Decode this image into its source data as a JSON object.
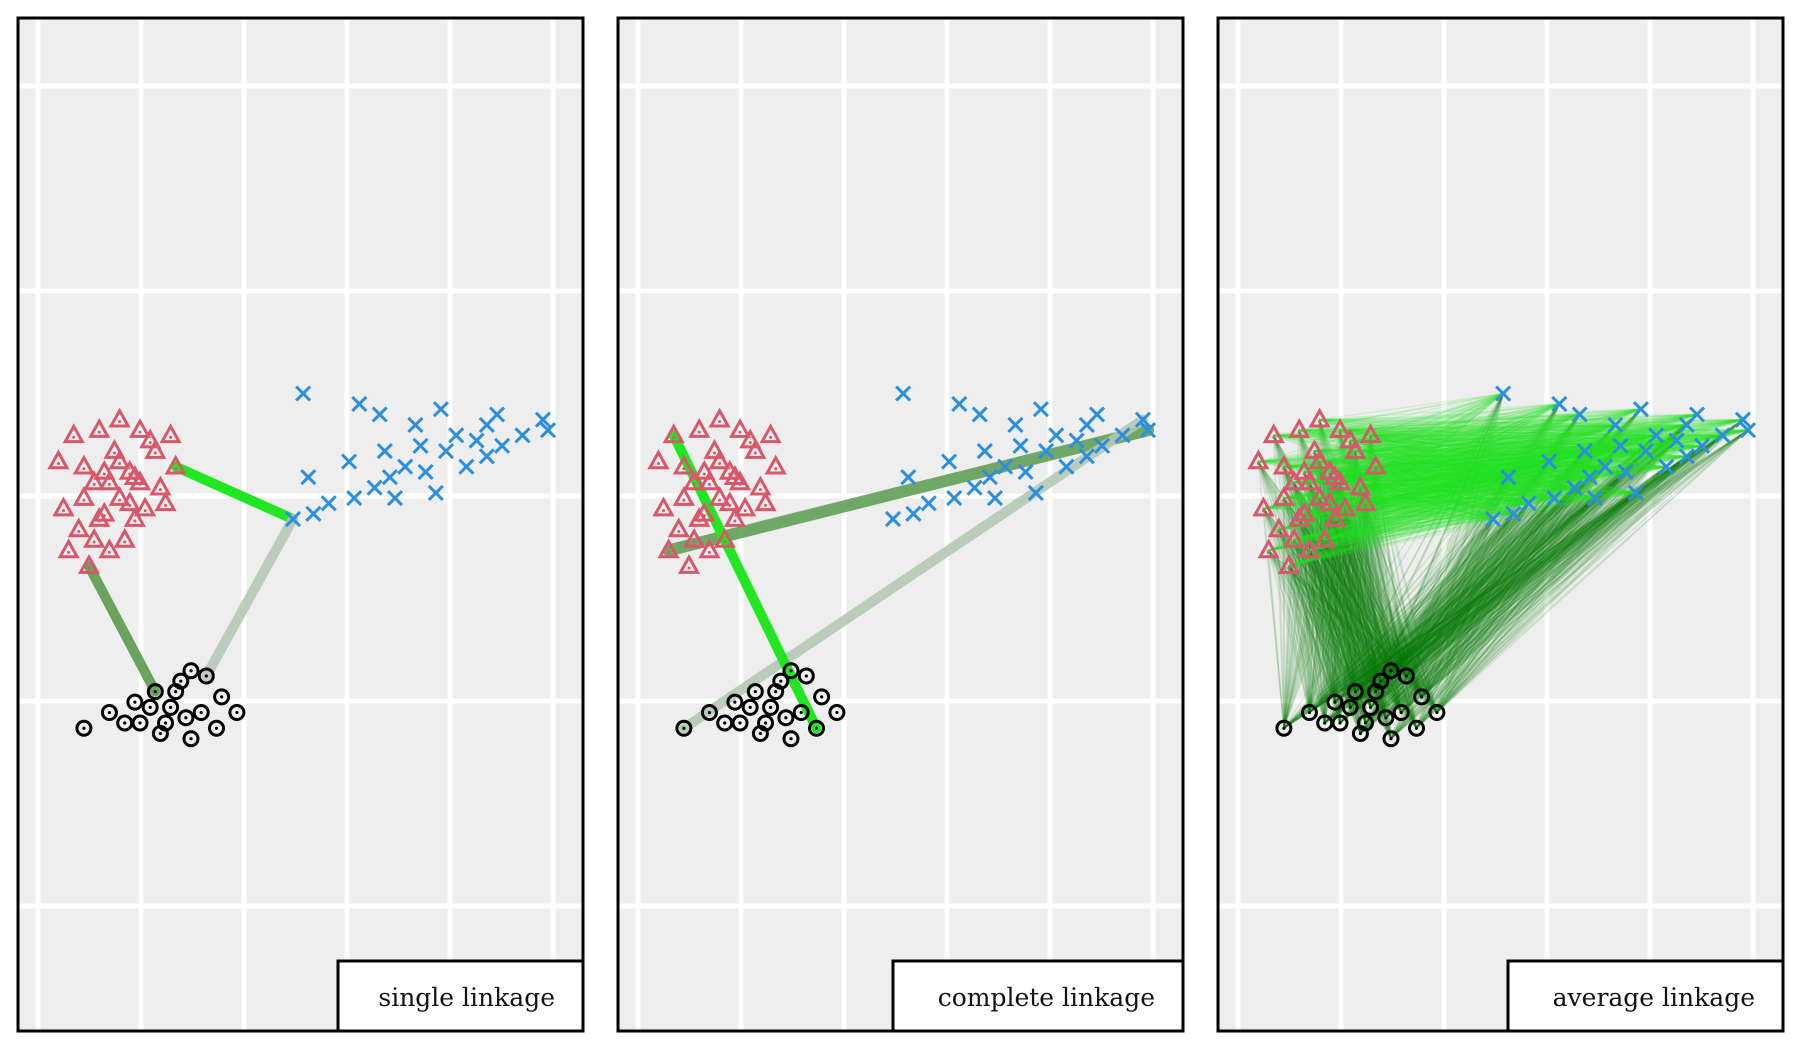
{
  "colors": {
    "background": "#ffffff",
    "panel_background": "#eeeeee",
    "grid": "#ffffff",
    "border": "#000000",
    "cluster_triangle": "#d9576a",
    "cluster_x": "#2b8fde",
    "cluster_circle": "#000000",
    "link_bright": "#22e622",
    "link_mid": "#5a9a4e",
    "link_faint": "#b4c8b4",
    "link_dark": "#0a7a0a"
  },
  "chart_data": [
    {
      "type": "scatter",
      "label": "single linkage",
      "grid": true,
      "xlim": [
        0,
        10
      ],
      "ylim": [
        0,
        10
      ],
      "series": [
        {
          "marker": "triangle",
          "color": "#d9576a",
          "points": [
            [
              0.4,
              6.3
            ],
            [
              0.9,
              6.2
            ],
            [
              1.4,
              5.9
            ],
            [
              1.9,
              6.0
            ],
            [
              1.6,
              5.6
            ],
            [
              1.3,
              5.3
            ],
            [
              0.8,
              5.0
            ],
            [
              1.1,
              4.8
            ],
            [
              0.6,
              4.6
            ],
            [
              1.0,
              4.3
            ],
            [
              1.7,
              4.8
            ],
            [
              2.1,
              5.4
            ],
            [
              2.4,
              5.8
            ],
            [
              2.7,
              6.2
            ],
            [
              2.3,
              6.5
            ],
            [
              2.0,
              6.9
            ],
            [
              1.6,
              7.1
            ],
            [
              1.2,
              6.9
            ],
            [
              0.7,
              6.8
            ],
            [
              1.5,
              6.5
            ],
            [
              1.8,
              6.1
            ],
            [
              2.5,
              5.5
            ],
            [
              1.1,
              5.9
            ],
            [
              1.9,
              5.2
            ],
            [
              2.2,
              6.7
            ],
            [
              1.4,
              4.6
            ],
            [
              0.9,
              5.6
            ],
            [
              1.6,
              6.3
            ],
            [
              2.0,
              5.9
            ],
            [
              0.5,
              5.4
            ],
            [
              2.6,
              6.8
            ],
            [
              1.3,
              6.1
            ],
            [
              1.8,
              5.5
            ],
            [
              1.2,
              5.2
            ]
          ]
        },
        {
          "marker": "x",
          "color": "#2b8fde",
          "points": [
            [
              5.2,
              7.6
            ],
            [
              6.3,
              7.4
            ],
            [
              6.7,
              7.2
            ],
            [
              7.4,
              7.0
            ],
            [
              7.9,
              7.3
            ],
            [
              8.2,
              6.8
            ],
            [
              8.8,
              6.4
            ],
            [
              9.1,
              6.6
            ],
            [
              9.5,
              6.8
            ],
            [
              9.9,
              7.1
            ],
            [
              10.0,
              6.9
            ],
            [
              9.0,
              7.2
            ],
            [
              8.6,
              6.7
            ],
            [
              8.0,
              6.5
            ],
            [
              7.5,
              6.6
            ],
            [
              7.2,
              6.2
            ],
            [
              6.9,
              6.0
            ],
            [
              6.6,
              5.8
            ],
            [
              6.2,
              5.6
            ],
            [
              5.7,
              5.5
            ],
            [
              5.4,
              5.3
            ],
            [
              5.0,
              5.2
            ],
            [
              5.3,
              6.0
            ],
            [
              6.1,
              6.3
            ],
            [
              6.8,
              6.5
            ],
            [
              7.6,
              6.1
            ],
            [
              8.4,
              6.2
            ],
            [
              7.0,
              5.6
            ],
            [
              7.8,
              5.7
            ],
            [
              8.8,
              7.0
            ]
          ]
        },
        {
          "marker": "circle",
          "color": "#000000",
          "points": [
            [
              0.9,
              1.2
            ],
            [
              1.4,
              1.5
            ],
            [
              1.9,
              1.7
            ],
            [
              2.3,
              1.9
            ],
            [
              2.8,
              2.1
            ],
            [
              3.3,
              2.2
            ],
            [
              3.6,
              1.8
            ],
            [
              3.9,
              1.5
            ],
            [
              3.5,
              1.2
            ],
            [
              3.0,
              1.0
            ],
            [
              2.4,
              1.1
            ],
            [
              2.0,
              1.3
            ],
            [
              2.6,
              1.6
            ],
            [
              2.9,
              1.4
            ],
            [
              2.2,
              1.6
            ],
            [
              3.2,
              1.5
            ],
            [
              1.7,
              1.3
            ],
            [
              2.7,
              1.9
            ],
            [
              3.0,
              2.3
            ],
            [
              2.5,
              1.3
            ]
          ]
        }
      ]
    },
    {
      "type": "scatter",
      "label": "complete linkage",
      "grid": true,
      "xlim": [
        0,
        10
      ],
      "ylim": [
        0,
        10
      ],
      "series": [
        {
          "marker": "triangle",
          "color": "#d9576a",
          "points": [
            [
              0.4,
              6.3
            ],
            [
              0.9,
              6.2
            ],
            [
              1.4,
              5.9
            ],
            [
              1.9,
              6.0
            ],
            [
              1.6,
              5.6
            ],
            [
              1.3,
              5.3
            ],
            [
              0.8,
              5.0
            ],
            [
              1.1,
              4.8
            ],
            [
              0.6,
              4.6
            ],
            [
              1.0,
              4.3
            ],
            [
              1.7,
              4.8
            ],
            [
              2.1,
              5.4
            ],
            [
              2.4,
              5.8
            ],
            [
              2.7,
              6.2
            ],
            [
              2.3,
              6.5
            ],
            [
              2.0,
              6.9
            ],
            [
              1.6,
              7.1
            ],
            [
              1.2,
              6.9
            ],
            [
              0.7,
              6.8
            ],
            [
              1.5,
              6.5
            ],
            [
              1.8,
              6.1
            ],
            [
              2.5,
              5.5
            ],
            [
              1.1,
              5.9
            ],
            [
              1.9,
              5.2
            ],
            [
              2.2,
              6.7
            ],
            [
              1.4,
              4.6
            ],
            [
              0.9,
              5.6
            ],
            [
              1.6,
              6.3
            ],
            [
              2.0,
              5.9
            ],
            [
              0.5,
              5.4
            ],
            [
              2.6,
              6.8
            ],
            [
              1.3,
              6.1
            ],
            [
              1.8,
              5.5
            ],
            [
              1.2,
              5.2
            ]
          ]
        },
        {
          "marker": "x",
          "color": "#2b8fde",
          "points": [
            [
              5.2,
              7.6
            ],
            [
              6.3,
              7.4
            ],
            [
              6.7,
              7.2
            ],
            [
              7.4,
              7.0
            ],
            [
              7.9,
              7.3
            ],
            [
              8.2,
              6.8
            ],
            [
              8.8,
              6.4
            ],
            [
              9.1,
              6.6
            ],
            [
              9.5,
              6.8
            ],
            [
              9.9,
              7.1
            ],
            [
              10.0,
              6.9
            ],
            [
              9.0,
              7.2
            ],
            [
              8.6,
              6.7
            ],
            [
              8.0,
              6.5
            ],
            [
              7.5,
              6.6
            ],
            [
              7.2,
              6.2
            ],
            [
              6.9,
              6.0
            ],
            [
              6.6,
              5.8
            ],
            [
              6.2,
              5.6
            ],
            [
              5.7,
              5.5
            ],
            [
              5.4,
              5.3
            ],
            [
              5.0,
              5.2
            ],
            [
              5.3,
              6.0
            ],
            [
              6.1,
              6.3
            ],
            [
              6.8,
              6.5
            ],
            [
              7.6,
              6.1
            ],
            [
              8.4,
              6.2
            ],
            [
              7.0,
              5.6
            ],
            [
              7.8,
              5.7
            ],
            [
              8.8,
              7.0
            ]
          ]
        },
        {
          "marker": "circle",
          "color": "#000000",
          "points": [
            [
              0.9,
              1.2
            ],
            [
              1.4,
              1.5
            ],
            [
              1.9,
              1.7
            ],
            [
              2.3,
              1.9
            ],
            [
              2.8,
              2.1
            ],
            [
              3.3,
              2.2
            ],
            [
              3.6,
              1.8
            ],
            [
              3.9,
              1.5
            ],
            [
              3.5,
              1.2
            ],
            [
              3.0,
              1.0
            ],
            [
              2.4,
              1.1
            ],
            [
              2.0,
              1.3
            ],
            [
              2.6,
              1.6
            ],
            [
              2.9,
              1.4
            ],
            [
              2.2,
              1.6
            ],
            [
              3.2,
              1.5
            ],
            [
              1.7,
              1.3
            ],
            [
              2.7,
              1.9
            ],
            [
              3.0,
              2.3
            ],
            [
              2.5,
              1.3
            ]
          ]
        }
      ]
    },
    {
      "type": "scatter",
      "label": "average linkage",
      "grid": true,
      "xlim": [
        0,
        10
      ],
      "ylim": [
        0,
        10
      ],
      "series": [
        {
          "marker": "triangle",
          "color": "#d9576a",
          "points": [
            [
              0.4,
              6.3
            ],
            [
              0.9,
              6.2
            ],
            [
              1.4,
              5.9
            ],
            [
              1.9,
              6.0
            ],
            [
              1.6,
              5.6
            ],
            [
              1.3,
              5.3
            ],
            [
              0.8,
              5.0
            ],
            [
              1.1,
              4.8
            ],
            [
              0.6,
              4.6
            ],
            [
              1.0,
              4.3
            ],
            [
              1.7,
              4.8
            ],
            [
              2.1,
              5.4
            ],
            [
              2.4,
              5.8
            ],
            [
              2.7,
              6.2
            ],
            [
              2.3,
              6.5
            ],
            [
              2.0,
              6.9
            ],
            [
              1.6,
              7.1
            ],
            [
              1.2,
              6.9
            ],
            [
              0.7,
              6.8
            ],
            [
              1.5,
              6.5
            ],
            [
              1.8,
              6.1
            ],
            [
              2.5,
              5.5
            ],
            [
              1.1,
              5.9
            ],
            [
              1.9,
              5.2
            ],
            [
              2.2,
              6.7
            ],
            [
              1.4,
              4.6
            ],
            [
              0.9,
              5.6
            ],
            [
              1.6,
              6.3
            ],
            [
              2.0,
              5.9
            ],
            [
              0.5,
              5.4
            ],
            [
              2.6,
              6.8
            ],
            [
              1.3,
              6.1
            ],
            [
              1.8,
              5.5
            ],
            [
              1.2,
              5.2
            ]
          ]
        },
        {
          "marker": "x",
          "color": "#2b8fde",
          "points": [
            [
              5.2,
              7.6
            ],
            [
              6.3,
              7.4
            ],
            [
              6.7,
              7.2
            ],
            [
              7.4,
              7.0
            ],
            [
              7.9,
              7.3
            ],
            [
              8.2,
              6.8
            ],
            [
              8.8,
              6.4
            ],
            [
              9.1,
              6.6
            ],
            [
              9.5,
              6.8
            ],
            [
              9.9,
              7.1
            ],
            [
              10.0,
              6.9
            ],
            [
              9.0,
              7.2
            ],
            [
              8.6,
              6.7
            ],
            [
              8.0,
              6.5
            ],
            [
              7.5,
              6.6
            ],
            [
              7.2,
              6.2
            ],
            [
              6.9,
              6.0
            ],
            [
              6.6,
              5.8
            ],
            [
              6.2,
              5.6
            ],
            [
              5.7,
              5.5
            ],
            [
              5.4,
              5.3
            ],
            [
              5.0,
              5.2
            ],
            [
              5.3,
              6.0
            ],
            [
              6.1,
              6.3
            ],
            [
              6.8,
              6.5
            ],
            [
              7.6,
              6.1
            ],
            [
              8.4,
              6.2
            ],
            [
              7.0,
              5.6
            ],
            [
              7.8,
              5.7
            ],
            [
              8.8,
              7.0
            ]
          ]
        },
        {
          "marker": "circle",
          "color": "#000000",
          "points": [
            [
              0.9,
              1.2
            ],
            [
              1.4,
              1.5
            ],
            [
              1.9,
              1.7
            ],
            [
              2.3,
              1.9
            ],
            [
              2.8,
              2.1
            ],
            [
              3.3,
              2.2
            ],
            [
              3.6,
              1.8
            ],
            [
              3.9,
              1.5
            ],
            [
              3.5,
              1.2
            ],
            [
              3.0,
              1.0
            ],
            [
              2.4,
              1.1
            ],
            [
              2.0,
              1.3
            ],
            [
              2.6,
              1.6
            ],
            [
              2.9,
              1.4
            ],
            [
              2.2,
              1.6
            ],
            [
              3.2,
              1.5
            ],
            [
              1.7,
              1.3
            ],
            [
              2.7,
              1.9
            ],
            [
              3.0,
              2.3
            ],
            [
              2.5,
              1.3
            ]
          ]
        }
      ]
    }
  ]
}
